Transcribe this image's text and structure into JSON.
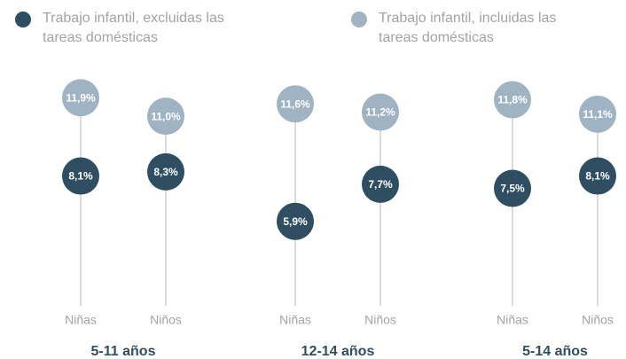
{
  "chart_data": {
    "type": "dot",
    "categories": [
      "Niñas",
      "Niños",
      "Niñas",
      "Niños",
      "Niñas",
      "Niños"
    ],
    "groups": [
      "5-11 años",
      "12-14 años",
      "5-14 años"
    ],
    "series": [
      {
        "name": "Trabajo infantil, excluidas las tareas domésticas",
        "color": "#2f4e62",
        "values": [
          8.1,
          8.3,
          5.9,
          7.7,
          7.5,
          8.1
        ],
        "value_labels": [
          "8,1%",
          "8,3%",
          "5,9%",
          "7,7%",
          "7,5%",
          "8,1%"
        ]
      },
      {
        "name": "Trabajo infantil, incluidas las tareas domésticas",
        "color": "#9fb3c2",
        "values": [
          11.9,
          11.0,
          11.6,
          11.2,
          11.8,
          11.1
        ],
        "value_labels": [
          "11,9%",
          "11,0%",
          "11,6%",
          "11,2%",
          "11,8%",
          "11,1%"
        ]
      }
    ],
    "ylim": [
      1.8,
      13.2
    ]
  }
}
